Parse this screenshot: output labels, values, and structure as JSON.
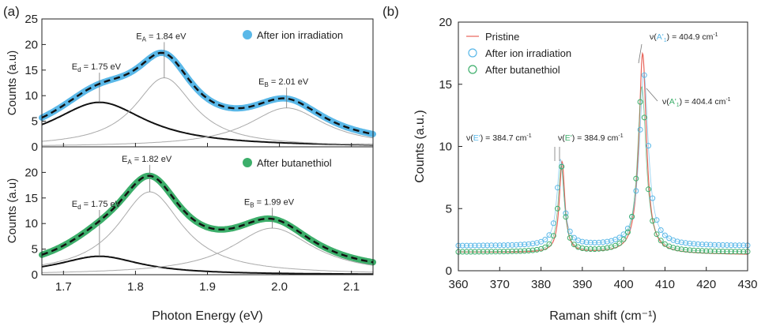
{
  "panels": {
    "a": "(a)",
    "b": "(b)"
  },
  "colors": {
    "ion": "#5ab8e8",
    "butanethiol": "#3cae6a",
    "pristine": "#e8645a",
    "fit": "#111111",
    "component_main": "#111111",
    "component_thin": "#aaaaaa"
  },
  "chart_data": [
    {
      "type": "line",
      "panel": "a-top",
      "ylabel": "Counts (a.u)",
      "ylim": [
        0,
        25
      ],
      "yticks": [
        0,
        5,
        10,
        15,
        20,
        25
      ],
      "xlim": [
        1.67,
        2.13
      ],
      "legend": "After ion irradiation",
      "peaks": [
        {
          "label_main": "E",
          "label_sub": "d",
          "label_val": " = 1.75 eV",
          "x": 1.75,
          "amp": 8.7,
          "w": 0.08
        },
        {
          "label_main": "E",
          "label_sub": "A",
          "label_val": " = 1.84 eV",
          "x": 1.84,
          "amp": 13.5,
          "w": 0.05
        },
        {
          "label_main": "E",
          "label_sub": "B",
          "label_val": " = 2.01 eV",
          "x": 2.01,
          "amp": 7.6,
          "w": 0.065
        }
      ]
    },
    {
      "type": "line",
      "panel": "a-bottom",
      "ylabel": "Counts (a.u)",
      "ylim": [
        0,
        25
      ],
      "yticks": [
        0,
        5,
        10,
        15,
        20
      ],
      "xlim": [
        1.67,
        2.13
      ],
      "xlabel": "Photon Energy (eV)",
      "xticks": [
        1.7,
        1.8,
        1.9,
        2.0,
        2.1
      ],
      "legend": "After butanethiol",
      "peaks": [
        {
          "label_main": "E",
          "label_sub": "d",
          "label_val": " = 1.75 eV",
          "x": 1.75,
          "amp": 3.6,
          "w": 0.07
        },
        {
          "label_main": "E",
          "label_sub": "A",
          "label_val": " = 1.82 eV",
          "x": 1.82,
          "amp": 16.2,
          "w": 0.055
        },
        {
          "label_main": "E",
          "label_sub": "B",
          "label_val": " = 1.99 eV",
          "x": 1.99,
          "amp": 9.1,
          "w": 0.07
        }
      ]
    },
    {
      "type": "line",
      "panel": "b",
      "xlabel": "Raman shift (cm⁻¹)",
      "ylabel": "Counts (a.u.)",
      "xlim": [
        360,
        430
      ],
      "ylim": [
        0,
        20
      ],
      "xticks": [
        360,
        370,
        380,
        390,
        400,
        410,
        420,
        430
      ],
      "yticks": [
        0,
        5,
        10,
        15,
        20
      ],
      "legend": [
        "Pristine",
        "After ion irradiation",
        "After butanethiol"
      ],
      "series": [
        {
          "name": "Pristine",
          "baseline": [
            1.5,
            1.3
          ],
          "peaks": [
            {
              "x": 385.1,
              "amp": 7.3,
              "w": 0.8
            },
            {
              "x": 404.6,
              "amp": 16.1,
              "w": 1.1
            }
          ]
        },
        {
          "name": "After ion irradiation",
          "baseline": [
            2.0,
            2.0
          ],
          "peaks": [
            {
              "x": 384.7,
              "amp": 6.9,
              "w": 1.0
            },
            {
              "x": 404.9,
              "amp": 13.8,
              "w": 1.3
            }
          ]
        },
        {
          "name": "After butanethiol",
          "baseline": [
            1.5,
            1.5
          ],
          "peaks": [
            {
              "x": 384.9,
              "amp": 6.9,
              "w": 0.9
            },
            {
              "x": 404.4,
              "amp": 13.3,
              "w": 1.25
            }
          ]
        }
      ],
      "annotations": [
        {
          "pre": "ν(",
          "mode": "E'",
          "post": ") = 384.7 cm",
          "sup": "-1",
          "series": "ion"
        },
        {
          "pre": "ν(",
          "mode": "E'",
          "post": ") = 384.9 cm",
          "sup": "-1",
          "series": "butanethiol"
        },
        {
          "pre": "ν(",
          "mode": "A'",
          "sub": "1",
          "post": ") = 404.9 cm",
          "sup": "-1",
          "series": "ion"
        },
        {
          "pre": "ν(",
          "mode": "A'",
          "sub": "1",
          "post": ") = 404.4 cm",
          "sup": "-1",
          "series": "butanethiol"
        }
      ]
    }
  ]
}
